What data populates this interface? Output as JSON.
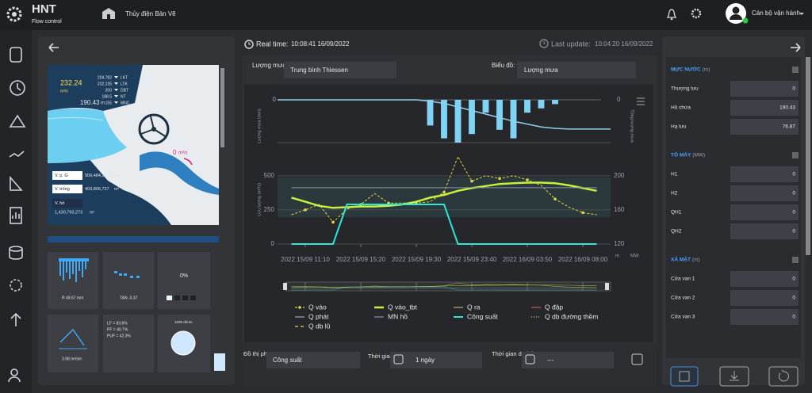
{
  "header": {
    "logo": "HNT",
    "logo_sub": "Flow control",
    "plant": "Thủy điện Bản Vẽ",
    "user": "Cán bộ vận hành"
  },
  "status": {
    "realtime_label": "Real time:",
    "realtime": "10:08:41 16/09/2022",
    "update_label": "Last update:",
    "update": "10:04:20 16/09/2022"
  },
  "dam": {
    "inflow": "232.24",
    "inflow_unit": "m³/s",
    "levels": [
      {
        "value": "204.782",
        "label": "LKT"
      },
      {
        "value": "202.235",
        "label": "LTK"
      },
      {
        "value": "200",
        "label": "DBT"
      },
      {
        "value": "188.5",
        "label": "NT"
      },
      {
        "value": "155",
        "label": "MNC"
      }
    ],
    "level": "190.43",
    "level_unit": "m",
    "outflow": "0",
    "outflow_unit": "m³/s",
    "volumes": [
      {
        "label": "V. p. G",
        "value": "509,484,374",
        "unit": "m³"
      },
      {
        "label": "V. trống",
        "value": "403,806,727",
        "unit": "m³"
      },
      {
        "label": "V. hồ",
        "value": "1,430,793,273",
        "unit": "m³"
      }
    ]
  },
  "tiles": {
    "rain": "R 49.67 mm",
    "tan": "TAN -0.37",
    "percent": "0%",
    "flow": "3.98 m³/sm",
    "lf": "LF = 83.6%",
    "pf": "PF = 40.7%",
    "puf": "PUF = 42.3%",
    "gauge": "1000 d/mm"
  },
  "form": {
    "rain_label": "Lượng mưa:",
    "rain_value": "Trung bình Thiessen",
    "chart_label": "Biểu đồ:",
    "chart_value": "Lượng mưa",
    "sub_label": "Đồ thị phụ:",
    "sub_value": "Công suất",
    "time_label": "Thời gian:",
    "time_value": "1 ngày",
    "forecast_label": "Thời gian dự báo:",
    "forecast_value": "---"
  },
  "chart_data": {
    "type": "line",
    "categories": [
      null,
      null,
      "2022 15/09 11:10",
      null,
      null,
      null,
      "2022 15/09 15:20",
      null,
      null,
      null,
      "2022 15/09 19:30",
      null,
      null,
      null,
      "2022 15/09 23:40",
      null,
      null,
      null,
      "2022 16/09 03:50",
      null,
      null,
      null,
      "2022 16/09 08:00",
      null,
      null
    ],
    "rain": {
      "ylabel": "Lượng mưa (mm)",
      "y2label": "Tổng lượng mưa",
      "ylim": [
        0,
        10
      ],
      "yticks": [
        0
      ],
      "y2lim": [
        0,
        60
      ],
      "y2ticks": [
        0
      ],
      "inverted": true,
      "color": "#7fd3f5",
      "line_color": "#8fd0ee",
      "values": [
        0,
        0,
        0,
        0,
        0,
        0,
        0,
        0,
        0,
        0,
        0,
        6,
        9,
        10,
        8,
        3,
        7,
        9,
        3,
        2,
        1,
        0,
        0,
        0,
        0
      ],
      "total": [
        0,
        0,
        0,
        0,
        0,
        0,
        0,
        0,
        0,
        0,
        0,
        2,
        5,
        10,
        15,
        20,
        25,
        30,
        34,
        38,
        40,
        41,
        41,
        41,
        41
      ]
    },
    "flow": {
      "ylabel": "Lưu lượng (m³/s)",
      "ylim": [
        0,
        650
      ],
      "yticks": [
        0,
        250,
        500
      ],
      "y2lim": [
        120,
        224
      ],
      "y2ticks": [
        120,
        160,
        200
      ],
      "y2units": [
        "m",
        "MW"
      ],
      "series": [
        {
          "name": "Q vào",
          "color": "#e3d448",
          "dash": "3,2",
          "markers": true,
          "width": 1,
          "values": [
            null,
            215,
            250,
            290,
            160,
            255,
            290,
            370,
            300,
            300,
            300,
            310,
            380,
            640,
            460,
            500,
            480,
            500,
            470,
            430,
            330,
            270,
            230,
            215,
            null
          ]
        },
        {
          "name": "Q vào_tbt",
          "color": "#c8f03c",
          "width": 2.5,
          "values": [
            null,
            340,
            310,
            280,
            265,
            270,
            275,
            275,
            280,
            290,
            310,
            340,
            360,
            390,
            410,
            425,
            440,
            445,
            450,
            450,
            445,
            430,
            410,
            390,
            null
          ]
        },
        {
          "name": "Q ra",
          "color": "#b9a98e",
          "width": 1,
          "values": [
            null,
            null,
            null,
            null,
            null,
            null,
            null,
            null,
            null,
            null,
            null,
            null,
            null,
            null,
            null,
            null,
            null,
            null,
            null,
            null,
            null,
            null,
            null,
            null,
            null
          ]
        },
        {
          "name": "Q đập",
          "color": "#c2566b",
          "width": 1,
          "values": [
            null,
            null,
            null,
            null,
            null,
            null,
            null,
            null,
            null,
            null,
            null,
            null,
            null,
            null,
            null,
            null,
            null,
            null,
            null,
            null,
            null,
            null,
            null,
            null,
            null
          ]
        },
        {
          "name": "Q phát",
          "color": "#9aa5ad",
          "width": 1,
          "values": [
            null,
            null,
            null,
            null,
            null,
            null,
            null,
            null,
            null,
            null,
            null,
            null,
            null,
            null,
            null,
            null,
            null,
            null,
            null,
            null,
            null,
            null,
            null,
            null,
            null
          ]
        },
        {
          "name": "MN hồ",
          "color": "#8a93a8",
          "width": 1,
          "axis": "y2",
          "values": [
            null,
            186,
            186,
            186,
            186,
            186,
            186,
            186,
            186,
            186,
            186,
            186,
            186,
            186,
            186,
            186,
            186,
            186,
            186,
            186,
            186,
            186,
            186,
            186,
            null
          ]
        },
        {
          "name": "Công suất",
          "color": "#2ee6d6",
          "width": 2,
          "values": [
            null,
            0,
            0,
            0,
            0,
            290,
            290,
            290,
            290,
            290,
            290,
            290,
            290,
            0,
            0,
            0,
            0,
            0,
            0,
            0,
            0,
            0,
            0,
            0,
            null
          ]
        },
        {
          "name": "Q db đường thềm",
          "color": "#d7e84a",
          "dash": "1,2",
          "width": 1,
          "values": [
            null,
            null,
            null,
            null,
            null,
            null,
            null,
            null,
            null,
            null,
            null,
            null,
            null,
            null,
            null,
            null,
            null,
            null,
            null,
            null,
            null,
            null,
            null,
            null,
            null
          ]
        },
        {
          "name": "Q db lũ",
          "color": "#e3d448",
          "dash": "4,3",
          "width": 1,
          "values": [
            null,
            null,
            null,
            null,
            null,
            null,
            null,
            null,
            null,
            null,
            null,
            null,
            null,
            null,
            null,
            null,
            null,
            null,
            null,
            null,
            null,
            null,
            null,
            null,
            null
          ]
        }
      ]
    }
  },
  "panel": [
    {
      "title": "MỰC NƯỚC",
      "unit": "(m)",
      "rows": [
        {
          "label": "Thượng lưu",
          "value": 0
        },
        {
          "label": "Hồ chứa",
          "value": 190.43
        },
        {
          "label": "Hạ lưu",
          "value": 76.87
        }
      ]
    },
    {
      "title": "TỔ MÁY",
      "unit": "(MW)",
      "rows": [
        {
          "label": "H1",
          "value": 0
        },
        {
          "label": "H2",
          "value": 0
        },
        {
          "label": "QH1",
          "value": 0
        },
        {
          "label": "QH2",
          "value": 0
        }
      ]
    },
    {
      "title": "XẢ MẶT",
      "unit": "(m)",
      "rows": [
        {
          "label": "Cửa van 1",
          "value": 0
        },
        {
          "label": "Cửa van 2",
          "value": 0
        },
        {
          "label": "Cửa van 3",
          "value": 0
        }
      ]
    }
  ]
}
